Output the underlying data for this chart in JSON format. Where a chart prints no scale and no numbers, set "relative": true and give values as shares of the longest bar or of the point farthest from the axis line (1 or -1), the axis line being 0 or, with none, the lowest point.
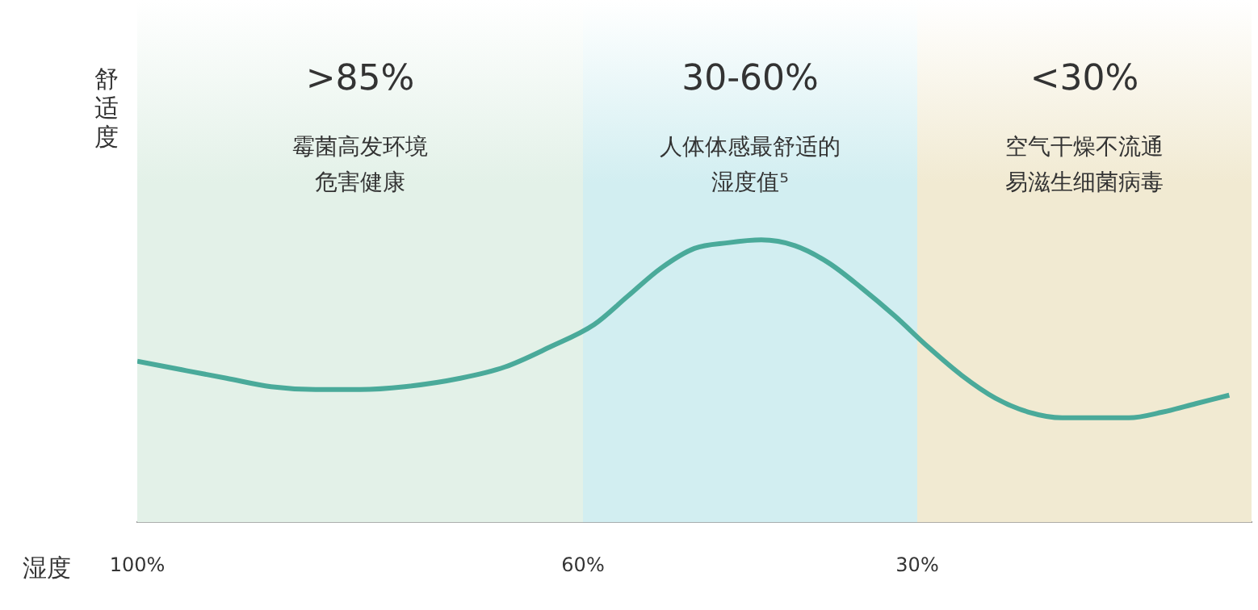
{
  "chart_data": {
    "type": "line",
    "relative": true,
    "ylabel": "舒适度",
    "xlabel": "湿度",
    "x": [
      100,
      96,
      92,
      88,
      84,
      80,
      76,
      71,
      67,
      63,
      59,
      56,
      53,
      50,
      47,
      44,
      41,
      38,
      35,
      32,
      29,
      26,
      23,
      20,
      17,
      14,
      11,
      8,
      5,
      2
    ],
    "xlim": [
      100,
      0
    ],
    "xticks": [
      {
        "value": 100,
        "label": "100%"
      },
      {
        "value": 60,
        "label": "60%"
      },
      {
        "value": 30,
        "label": "30%"
      }
    ],
    "series": [
      {
        "color": "#4aaa9a",
        "values": [
          0.57,
          0.54,
          0.51,
          0.48,
          0.47,
          0.47,
          0.48,
          0.51,
          0.55,
          0.62,
          0.7,
          0.8,
          0.9,
          0.97,
          0.99,
          1,
          0.98,
          0.92,
          0.83,
          0.73,
          0.62,
          0.52,
          0.44,
          0.39,
          0.37,
          0.37,
          0.37,
          0.39,
          0.42,
          0.45
        ]
      }
    ],
    "bands": [
      {
        "axis": "x",
        "from": 100,
        "to": 60,
        "color": "#e3f1e8",
        "label": ">85%"
      },
      {
        "axis": "x",
        "from": 60,
        "to": 30,
        "color": "#d2eef1",
        "label": "30-60%"
      },
      {
        "axis": "x",
        "from": 30,
        "to": 0,
        "color": "#f1ead2",
        "label": "<30%"
      }
    ],
    "annotations": [
      "霉菌高发环境",
      "危害健康",
      "人体体感最舒适的",
      "湿度值⁵",
      "空气干燥不流通",
      "易滋生细菌病毒"
    ],
    "legend": false,
    "marker": "none"
  }
}
